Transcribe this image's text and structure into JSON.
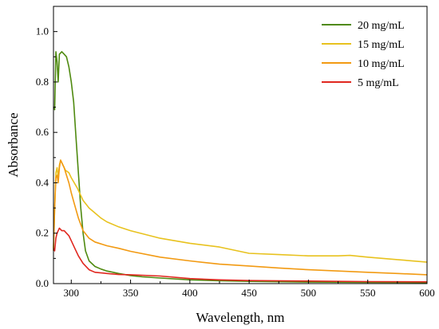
{
  "chart_data": {
    "type": "line",
    "title": "",
    "xlabel": "Wavelength, nm",
    "ylabel": "Absorbance",
    "xlim": [
      285,
      600
    ],
    "ylim": [
      0,
      1.1
    ],
    "x_ticks": [
      300,
      350,
      400,
      450,
      500,
      550,
      600
    ],
    "y_ticks": [
      0.0,
      0.2,
      0.4,
      0.6,
      0.8,
      1.0
    ],
    "x_tick_labels": [
      "300",
      "350",
      "400",
      "450",
      "500",
      "550",
      "600"
    ],
    "y_tick_labels": [
      "0.0",
      "0.2",
      "0.4",
      "0.6",
      "0.8",
      "1.0"
    ],
    "grid": false,
    "legend_position": "top-right",
    "series": [
      {
        "name": "20 mg/mL",
        "color": "#4f8a10",
        "points": [
          [
            285,
            0.7
          ],
          [
            286,
            0.69
          ],
          [
            287,
            0.92
          ],
          [
            288,
            0.88
          ],
          [
            289,
            0.8
          ],
          [
            290,
            0.91
          ],
          [
            292,
            0.92
          ],
          [
            294,
            0.91
          ],
          [
            296,
            0.9
          ],
          [
            298,
            0.86
          ],
          [
            300,
            0.8
          ],
          [
            302,
            0.72
          ],
          [
            304,
            0.58
          ],
          [
            306,
            0.44
          ],
          [
            308,
            0.3
          ],
          [
            310,
            0.2
          ],
          [
            312,
            0.13
          ],
          [
            315,
            0.09
          ],
          [
            320,
            0.068
          ],
          [
            325,
            0.058
          ],
          [
            330,
            0.05
          ],
          [
            340,
            0.04
          ],
          [
            350,
            0.032
          ],
          [
            360,
            0.027
          ],
          [
            375,
            0.022
          ],
          [
            400,
            0.015
          ],
          [
            425,
            0.011
          ],
          [
            450,
            0.009
          ],
          [
            500,
            0.006
          ],
          [
            550,
            0.005
          ],
          [
            600,
            0.004
          ]
        ]
      },
      {
        "name": "15 mg/mL",
        "color": "#e8c21e",
        "points": [
          [
            285,
            0.14
          ],
          [
            286,
            0.3
          ],
          [
            287,
            0.44
          ],
          [
            288,
            0.46
          ],
          [
            289,
            0.42
          ],
          [
            290,
            0.47
          ],
          [
            291,
            0.49
          ],
          [
            293,
            0.47
          ],
          [
            295,
            0.45
          ],
          [
            298,
            0.44
          ],
          [
            300,
            0.42
          ],
          [
            305,
            0.38
          ],
          [
            310,
            0.33
          ],
          [
            315,
            0.3
          ],
          [
            320,
            0.28
          ],
          [
            325,
            0.26
          ],
          [
            330,
            0.245
          ],
          [
            340,
            0.225
          ],
          [
            350,
            0.21
          ],
          [
            375,
            0.18
          ],
          [
            400,
            0.16
          ],
          [
            425,
            0.145
          ],
          [
            450,
            0.12
          ],
          [
            475,
            0.115
          ],
          [
            500,
            0.11
          ],
          [
            525,
            0.11
          ],
          [
            535,
            0.112
          ],
          [
            550,
            0.105
          ],
          [
            575,
            0.095
          ],
          [
            600,
            0.085
          ]
        ]
      },
      {
        "name": "10 mg/mL",
        "color": "#f29a12",
        "points": [
          [
            285,
            0.13
          ],
          [
            286,
            0.3
          ],
          [
            287,
            0.42
          ],
          [
            288,
            0.43
          ],
          [
            289,
            0.4
          ],
          [
            290,
            0.46
          ],
          [
            291,
            0.49
          ],
          [
            292,
            0.48
          ],
          [
            294,
            0.46
          ],
          [
            296,
            0.43
          ],
          [
            298,
            0.4
          ],
          [
            300,
            0.36
          ],
          [
            303,
            0.31
          ],
          [
            306,
            0.26
          ],
          [
            310,
            0.21
          ],
          [
            315,
            0.18
          ],
          [
            320,
            0.165
          ],
          [
            330,
            0.15
          ],
          [
            340,
            0.14
          ],
          [
            350,
            0.128
          ],
          [
            375,
            0.105
          ],
          [
            400,
            0.09
          ],
          [
            425,
            0.077
          ],
          [
            450,
            0.07
          ],
          [
            475,
            0.062
          ],
          [
            500,
            0.055
          ],
          [
            525,
            0.05
          ],
          [
            550,
            0.045
          ],
          [
            575,
            0.04
          ],
          [
            600,
            0.035
          ]
        ]
      },
      {
        "name": "5 mg/mL",
        "color": "#e0271f",
        "points": [
          [
            285,
            0.14
          ],
          [
            286,
            0.13
          ],
          [
            287,
            0.18
          ],
          [
            288,
            0.2
          ],
          [
            290,
            0.22
          ],
          [
            292,
            0.21
          ],
          [
            294,
            0.21
          ],
          [
            296,
            0.2
          ],
          [
            298,
            0.19
          ],
          [
            300,
            0.17
          ],
          [
            303,
            0.14
          ],
          [
            306,
            0.11
          ],
          [
            310,
            0.08
          ],
          [
            315,
            0.055
          ],
          [
            320,
            0.045
          ],
          [
            330,
            0.04
          ],
          [
            340,
            0.036
          ],
          [
            350,
            0.035
          ],
          [
            375,
            0.03
          ],
          [
            400,
            0.02
          ],
          [
            425,
            0.015
          ],
          [
            450,
            0.012
          ],
          [
            500,
            0.01
          ],
          [
            550,
            0.008
          ],
          [
            600,
            0.007
          ]
        ]
      }
    ]
  }
}
